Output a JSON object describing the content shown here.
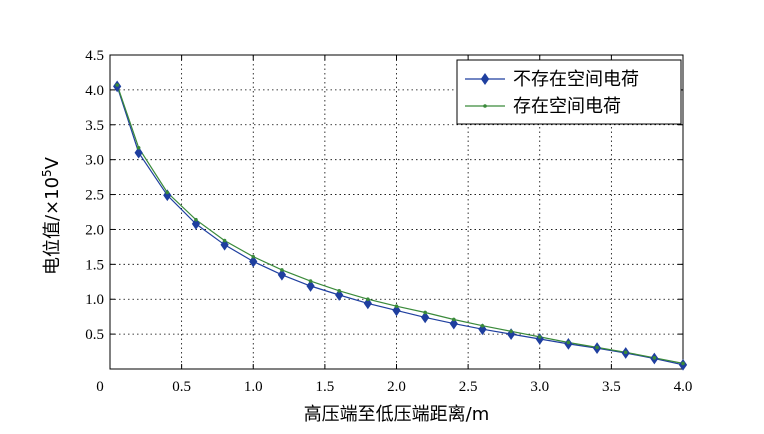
{
  "chart_data": {
    "type": "line",
    "title": "",
    "xlabel": "高压端至低压端距离/m",
    "ylabel": "电位值/×10",
    "ylabel_exp": "5",
    "ylabel_unit": "V",
    "xlim": [
      0,
      4.0
    ],
    "ylim": [
      0,
      4.5
    ],
    "x_ticks": [
      "0",
      "0.5",
      "1.0",
      "1.5",
      "2.0",
      "2.5",
      "3.0",
      "3.5",
      "4.0"
    ],
    "y_ticks": [
      "0.5",
      "1.0",
      "1.5",
      "2.0",
      "2.5",
      "3.0",
      "3.5",
      "4.0",
      "4.5"
    ],
    "grid": true,
    "legend_position": "top-right",
    "x": [
      0.05,
      0.2,
      0.4,
      0.6,
      0.8,
      1.0,
      1.2,
      1.4,
      1.6,
      1.8,
      2.0,
      2.2,
      2.4,
      2.6,
      2.8,
      3.0,
      3.2,
      3.4,
      3.6,
      3.8,
      4.0
    ],
    "series": [
      {
        "name": "不存在空间电荷",
        "color": "#1f3f9f",
        "marker": "diamond",
        "values": [
          4.05,
          3.1,
          2.49,
          2.08,
          1.78,
          1.54,
          1.35,
          1.19,
          1.06,
          0.94,
          0.84,
          0.74,
          0.65,
          0.57,
          0.5,
          0.43,
          0.36,
          0.3,
          0.23,
          0.15,
          0.06
        ]
      },
      {
        "name": "存在空间电荷",
        "color": "#3a8a3a",
        "marker": "dot",
        "values": [
          4.07,
          3.17,
          2.53,
          2.14,
          1.84,
          1.61,
          1.42,
          1.26,
          1.12,
          1.0,
          0.9,
          0.81,
          0.71,
          0.62,
          0.54,
          0.46,
          0.38,
          0.31,
          0.24,
          0.16,
          0.08
        ]
      }
    ]
  }
}
